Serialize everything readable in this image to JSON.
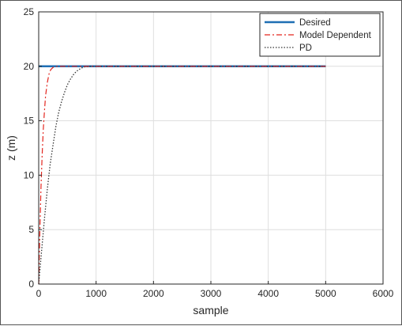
{
  "chart_data": {
    "type": "line",
    "xlabel": "sample",
    "ylabel": "z (m)",
    "xlim": [
      0,
      6000
    ],
    "ylim": [
      0,
      25
    ],
    "xticks": [
      0,
      1000,
      2000,
      3000,
      4000,
      5000,
      6000
    ],
    "yticks": [
      0,
      5,
      10,
      15,
      20,
      25
    ],
    "grid": true,
    "legend_position": "top-right",
    "series": [
      {
        "name": "Desired",
        "color": "#1f6fb4",
        "style": "solid",
        "x": [
          0,
          5000
        ],
        "y": [
          20,
          20
        ]
      },
      {
        "name": "Model Dependent",
        "color": "#e3261f",
        "style": "dashdot",
        "x": [
          0,
          20,
          40,
          60,
          80,
          100,
          120,
          150,
          180,
          210,
          250,
          300,
          5000
        ],
        "y": [
          0,
          5.0,
          8.9,
          11.9,
          14.2,
          15.9,
          17.3,
          18.5,
          19.3,
          19.7,
          19.9,
          20,
          20
        ]
      },
      {
        "name": "PD",
        "color": "#333333",
        "style": "dotted",
        "x": [
          0,
          50,
          100,
          150,
          200,
          250,
          300,
          350,
          400,
          450,
          500,
          550,
          600,
          650,
          700,
          750,
          800,
          900,
          5000
        ],
        "y": [
          0,
          3.0,
          6.0,
          8.7,
          11.0,
          12.8,
          14.5,
          15.8,
          16.8,
          17.6,
          18.3,
          18.8,
          19.2,
          19.5,
          19.7,
          19.85,
          19.95,
          20,
          20
        ]
      }
    ]
  }
}
